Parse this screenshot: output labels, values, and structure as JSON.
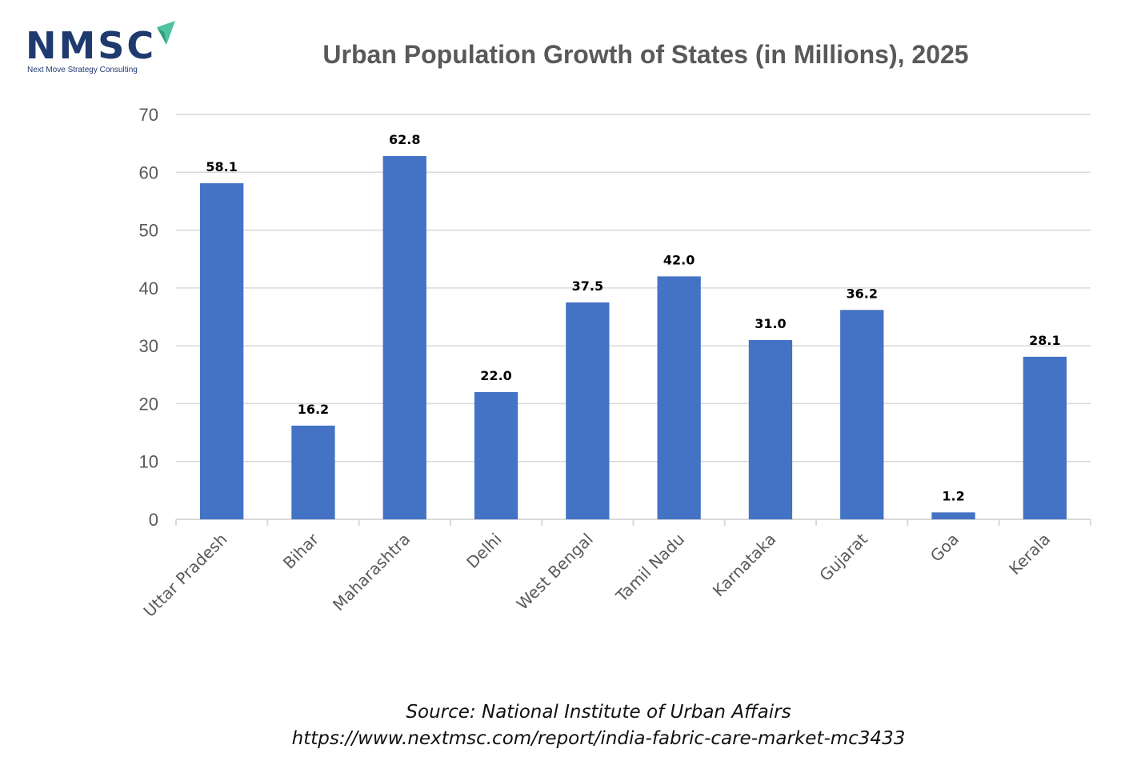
{
  "logo": {
    "text": "NMSC",
    "tagline": "Next Move Strategy Consulting",
    "icon": "paper-plane-icon",
    "colors": {
      "text": "#1f3a6e",
      "accent": "#4fc3a1"
    }
  },
  "colors": {
    "bar": "#4472c4",
    "grid": "#d9d9d9",
    "axis_text": "#595959",
    "data_label": "#000000"
  },
  "chart_data": {
    "type": "bar",
    "title": "Urban Population Growth of States (in Millions), 2025",
    "categories": [
      "Uttar Pradesh",
      "Bihar",
      "Maharashtra",
      "Delhi",
      "West Bengal",
      "Tamil Nadu",
      "Karnataka",
      "Gujarat",
      "Goa",
      "Kerala"
    ],
    "values": [
      58.1,
      16.2,
      62.8,
      22.0,
      37.5,
      42.0,
      31.0,
      36.2,
      1.2,
      28.1
    ],
    "data_labels": [
      "58.1",
      "16.2",
      "62.8",
      "22.0",
      "37.5",
      "42.0",
      "31.0",
      "36.2",
      "1.2",
      "28.1"
    ],
    "xlabel": "",
    "ylabel": "",
    "ylim": [
      0,
      70
    ],
    "yticks": [
      0,
      10,
      20,
      30,
      40,
      50,
      60,
      70
    ],
    "grid": true,
    "legend": "none"
  },
  "source": {
    "line1": "Source: National Institute of Urban Affairs",
    "line2": "https://www.nextmsc.com/report/india-fabric-care-market-mc3433"
  }
}
